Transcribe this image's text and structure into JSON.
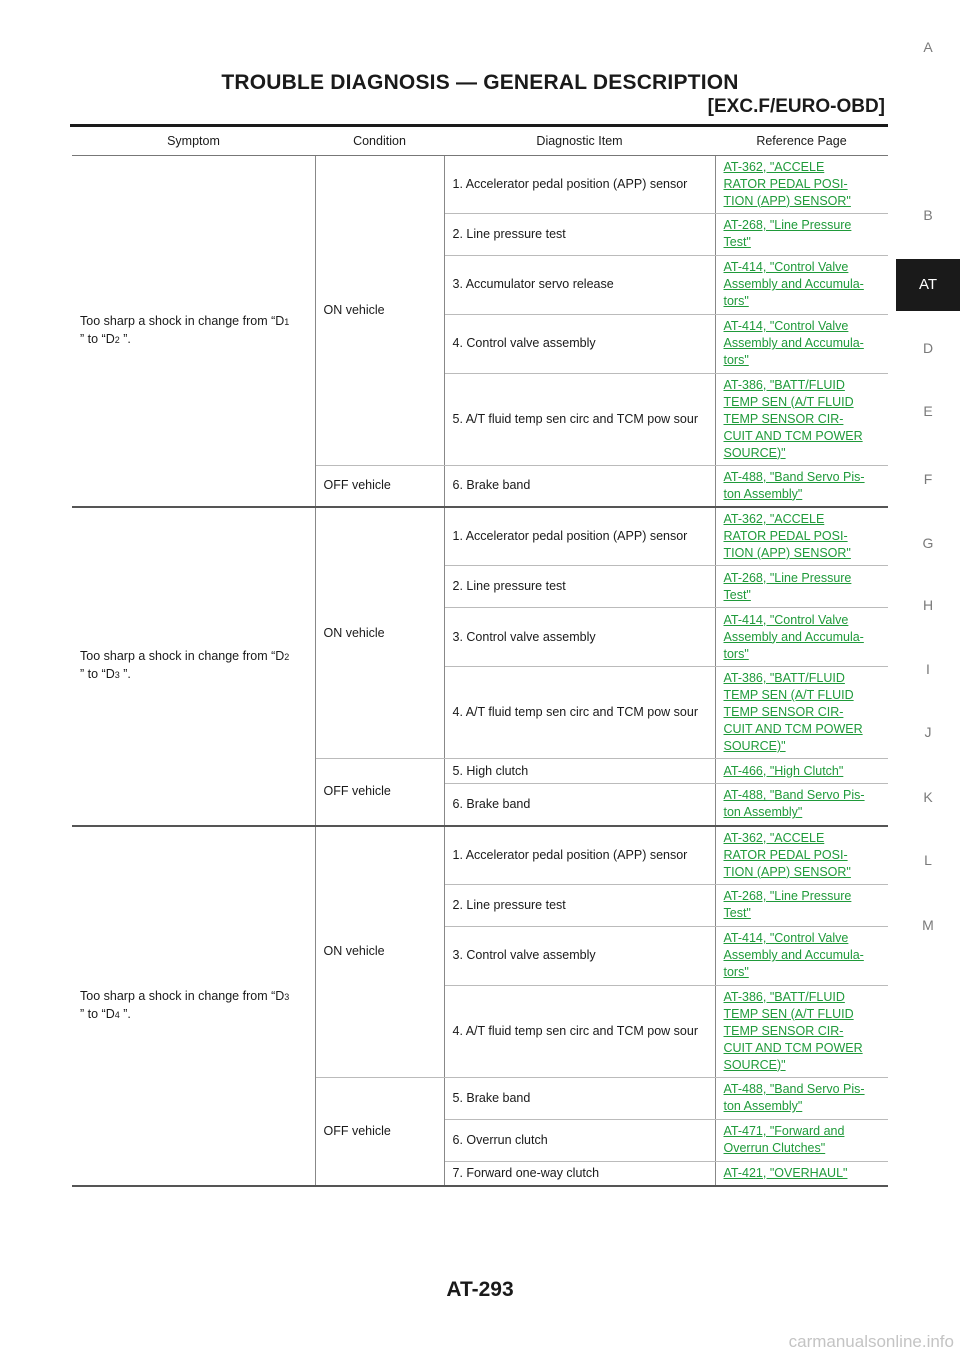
{
  "header": {
    "title": "TROUBLE DIAGNOSIS — GENERAL DESCRIPTION",
    "subtitle": "[EXC.F/EURO-OBD]"
  },
  "side_tabs": [
    "A",
    "B",
    "AT",
    "D",
    "E",
    "F",
    "G",
    "H",
    "I",
    "J",
    "K",
    "L",
    "M"
  ],
  "table": {
    "headers": [
      "Symptom",
      "Condition",
      "Diagnostic Item",
      "Reference Page"
    ],
    "groups": [
      {
        "symptom": {
          "prefix": "Too sharp a shock in change from “D",
          "sub1": "1",
          "mid": "” to “D",
          "sub2": "2",
          "suffix": " ”."
        },
        "conditions": [
          {
            "label": "ON vehicle",
            "rows": [
              {
                "item": "1. Accelerator pedal position (APP) sensor",
                "ref": [
                  "AT-362, \"ACCELE ",
                  "RATOR PEDAL POSI-",
                  "TION (APP) SENSOR\""
                ]
              },
              {
                "item": "2. Line pressure test",
                "ref": [
                  "AT-268, \"Line Pressure ",
                  "Test\""
                ]
              },
              {
                "item": "3. Accumulator servo release",
                "ref": [
                  "AT-414, \"Control Valve ",
                  "Assembly and Accumula-",
                  "tors\""
                ]
              },
              {
                "item": "4. Control valve assembly",
                "ref": [
                  "AT-414, \"Control Valve ",
                  "Assembly and Accumula-",
                  "tors\""
                ]
              },
              {
                "item": "5. A/T fluid temp sen circ and TCM pow sour",
                "ref": [
                  "AT-386, \"BATT/FLUID ",
                  "TEMP SEN (A/T FLUID ",
                  "TEMP SENSOR CIR-",
                  "CUIT AND TCM POWER ",
                  "SOURCE)\""
                ]
              }
            ]
          },
          {
            "label": "OFF vehicle",
            "rows": [
              {
                "item": "6. Brake band",
                "ref": [
                  "AT-488, \"Band Servo Pis-",
                  "ton Assembly\""
                ]
              }
            ]
          }
        ]
      },
      {
        "symptom": {
          "prefix": "Too sharp a shock in change from “D",
          "sub1": "2",
          "mid": "” to “D",
          "sub2": "3",
          "suffix": " ”."
        },
        "conditions": [
          {
            "label": "ON vehicle",
            "rows": [
              {
                "item": "1. Accelerator pedal position (APP) sensor",
                "ref": [
                  "AT-362, \"ACCELE ",
                  "RATOR PEDAL POSI-",
                  "TION (APP) SENSOR\""
                ]
              },
              {
                "item": "2. Line pressure test",
                "ref": [
                  "AT-268, \"Line Pressure ",
                  "Test\""
                ]
              },
              {
                "item": "3. Control valve assembly",
                "ref": [
                  "AT-414, \"Control Valve ",
                  "Assembly and Accumula-",
                  "tors\""
                ]
              },
              {
                "item": "4. A/T fluid temp sen circ and TCM pow sour",
                "ref": [
                  "AT-386, \"BATT/FLUID ",
                  "TEMP SEN (A/T FLUID ",
                  "TEMP SENSOR CIR-",
                  "CUIT AND TCM POWER ",
                  "SOURCE)\""
                ]
              }
            ]
          },
          {
            "label": "OFF vehicle",
            "rows": [
              {
                "item": "5. High clutch",
                "ref": [
                  "AT-466, \"High Clutch\""
                ]
              },
              {
                "item": "6. Brake band",
                "ref": [
                  "AT-488, \"Band Servo Pis-",
                  "ton Assembly\""
                ]
              }
            ]
          }
        ]
      },
      {
        "symptom": {
          "prefix": "Too sharp a shock in change from “D",
          "sub1": "3",
          "mid": "” to “D",
          "sub2": "4",
          "suffix": " ”."
        },
        "conditions": [
          {
            "label": "ON vehicle",
            "rows": [
              {
                "item": "1. Accelerator pedal position (APP) sensor",
                "ref": [
                  "AT-362, \"ACCELE ",
                  "RATOR PEDAL POSI-",
                  "TION (APP) SENSOR\""
                ]
              },
              {
                "item": "2. Line pressure test",
                "ref": [
                  "AT-268, \"Line Pressure ",
                  "Test\""
                ]
              },
              {
                "item": "3. Control valve assembly",
                "ref": [
                  "AT-414, \"Control Valve ",
                  "Assembly and Accumula-",
                  "tors\""
                ]
              },
              {
                "item": "4. A/T fluid temp sen circ and TCM pow sour",
                "ref": [
                  "AT-386, \"BATT/FLUID ",
                  "TEMP SEN (A/T FLUID ",
                  "TEMP SENSOR CIR-",
                  "CUIT AND TCM POWER ",
                  "SOURCE)\""
                ]
              }
            ]
          },
          {
            "label": "OFF vehicle",
            "rows": [
              {
                "item": "5. Brake band",
                "ref": [
                  "AT-488, \"Band Servo Pis-",
                  "ton Assembly\""
                ]
              },
              {
                "item": "6. Overrun clutch",
                "ref": [
                  "AT-471, \"Forward and ",
                  "Overrun Clutches\""
                ]
              },
              {
                "item": "7. Forward one-way clutch",
                "ref": [
                  "AT-421, \"OVERHAUL\""
                ]
              }
            ]
          }
        ]
      }
    ]
  },
  "footer": {
    "page_number": "AT-293",
    "watermark": "carmanualsonline.info"
  }
}
